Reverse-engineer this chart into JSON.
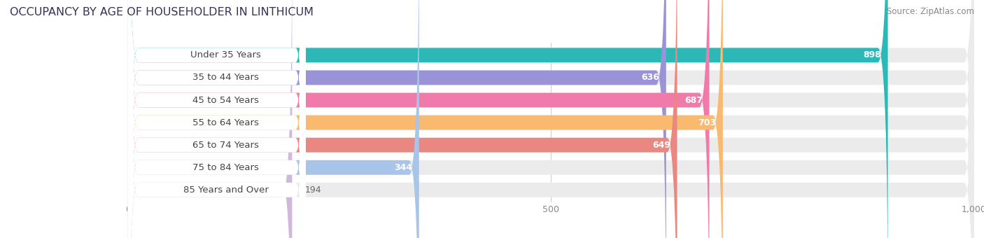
{
  "title": "OCCUPANCY BY AGE OF HOUSEHOLDER IN LINTHICUM",
  "source": "Source: ZipAtlas.com",
  "categories": [
    "Under 35 Years",
    "35 to 44 Years",
    "45 to 54 Years",
    "55 to 64 Years",
    "65 to 74 Years",
    "75 to 84 Years",
    "85 Years and Over"
  ],
  "values": [
    898,
    636,
    687,
    703,
    649,
    344,
    194
  ],
  "bar_colors": [
    "#2db8b8",
    "#9b93d8",
    "#f07aaa",
    "#f9b96e",
    "#e88880",
    "#a8c4e8",
    "#d0b8dc"
  ],
  "xlim_data": [
    0,
    1000
  ],
  "xticks": [
    0,
    500,
    1000
  ],
  "bar_bg_color": "#ebebeb",
  "title_color": "#333355",
  "value_color_inside": "#ffffff",
  "value_color_outside": "#666666",
  "title_fontsize": 11.5,
  "label_fontsize": 9.5,
  "value_fontsize": 9,
  "source_fontsize": 8.5,
  "tick_fontsize": 9
}
